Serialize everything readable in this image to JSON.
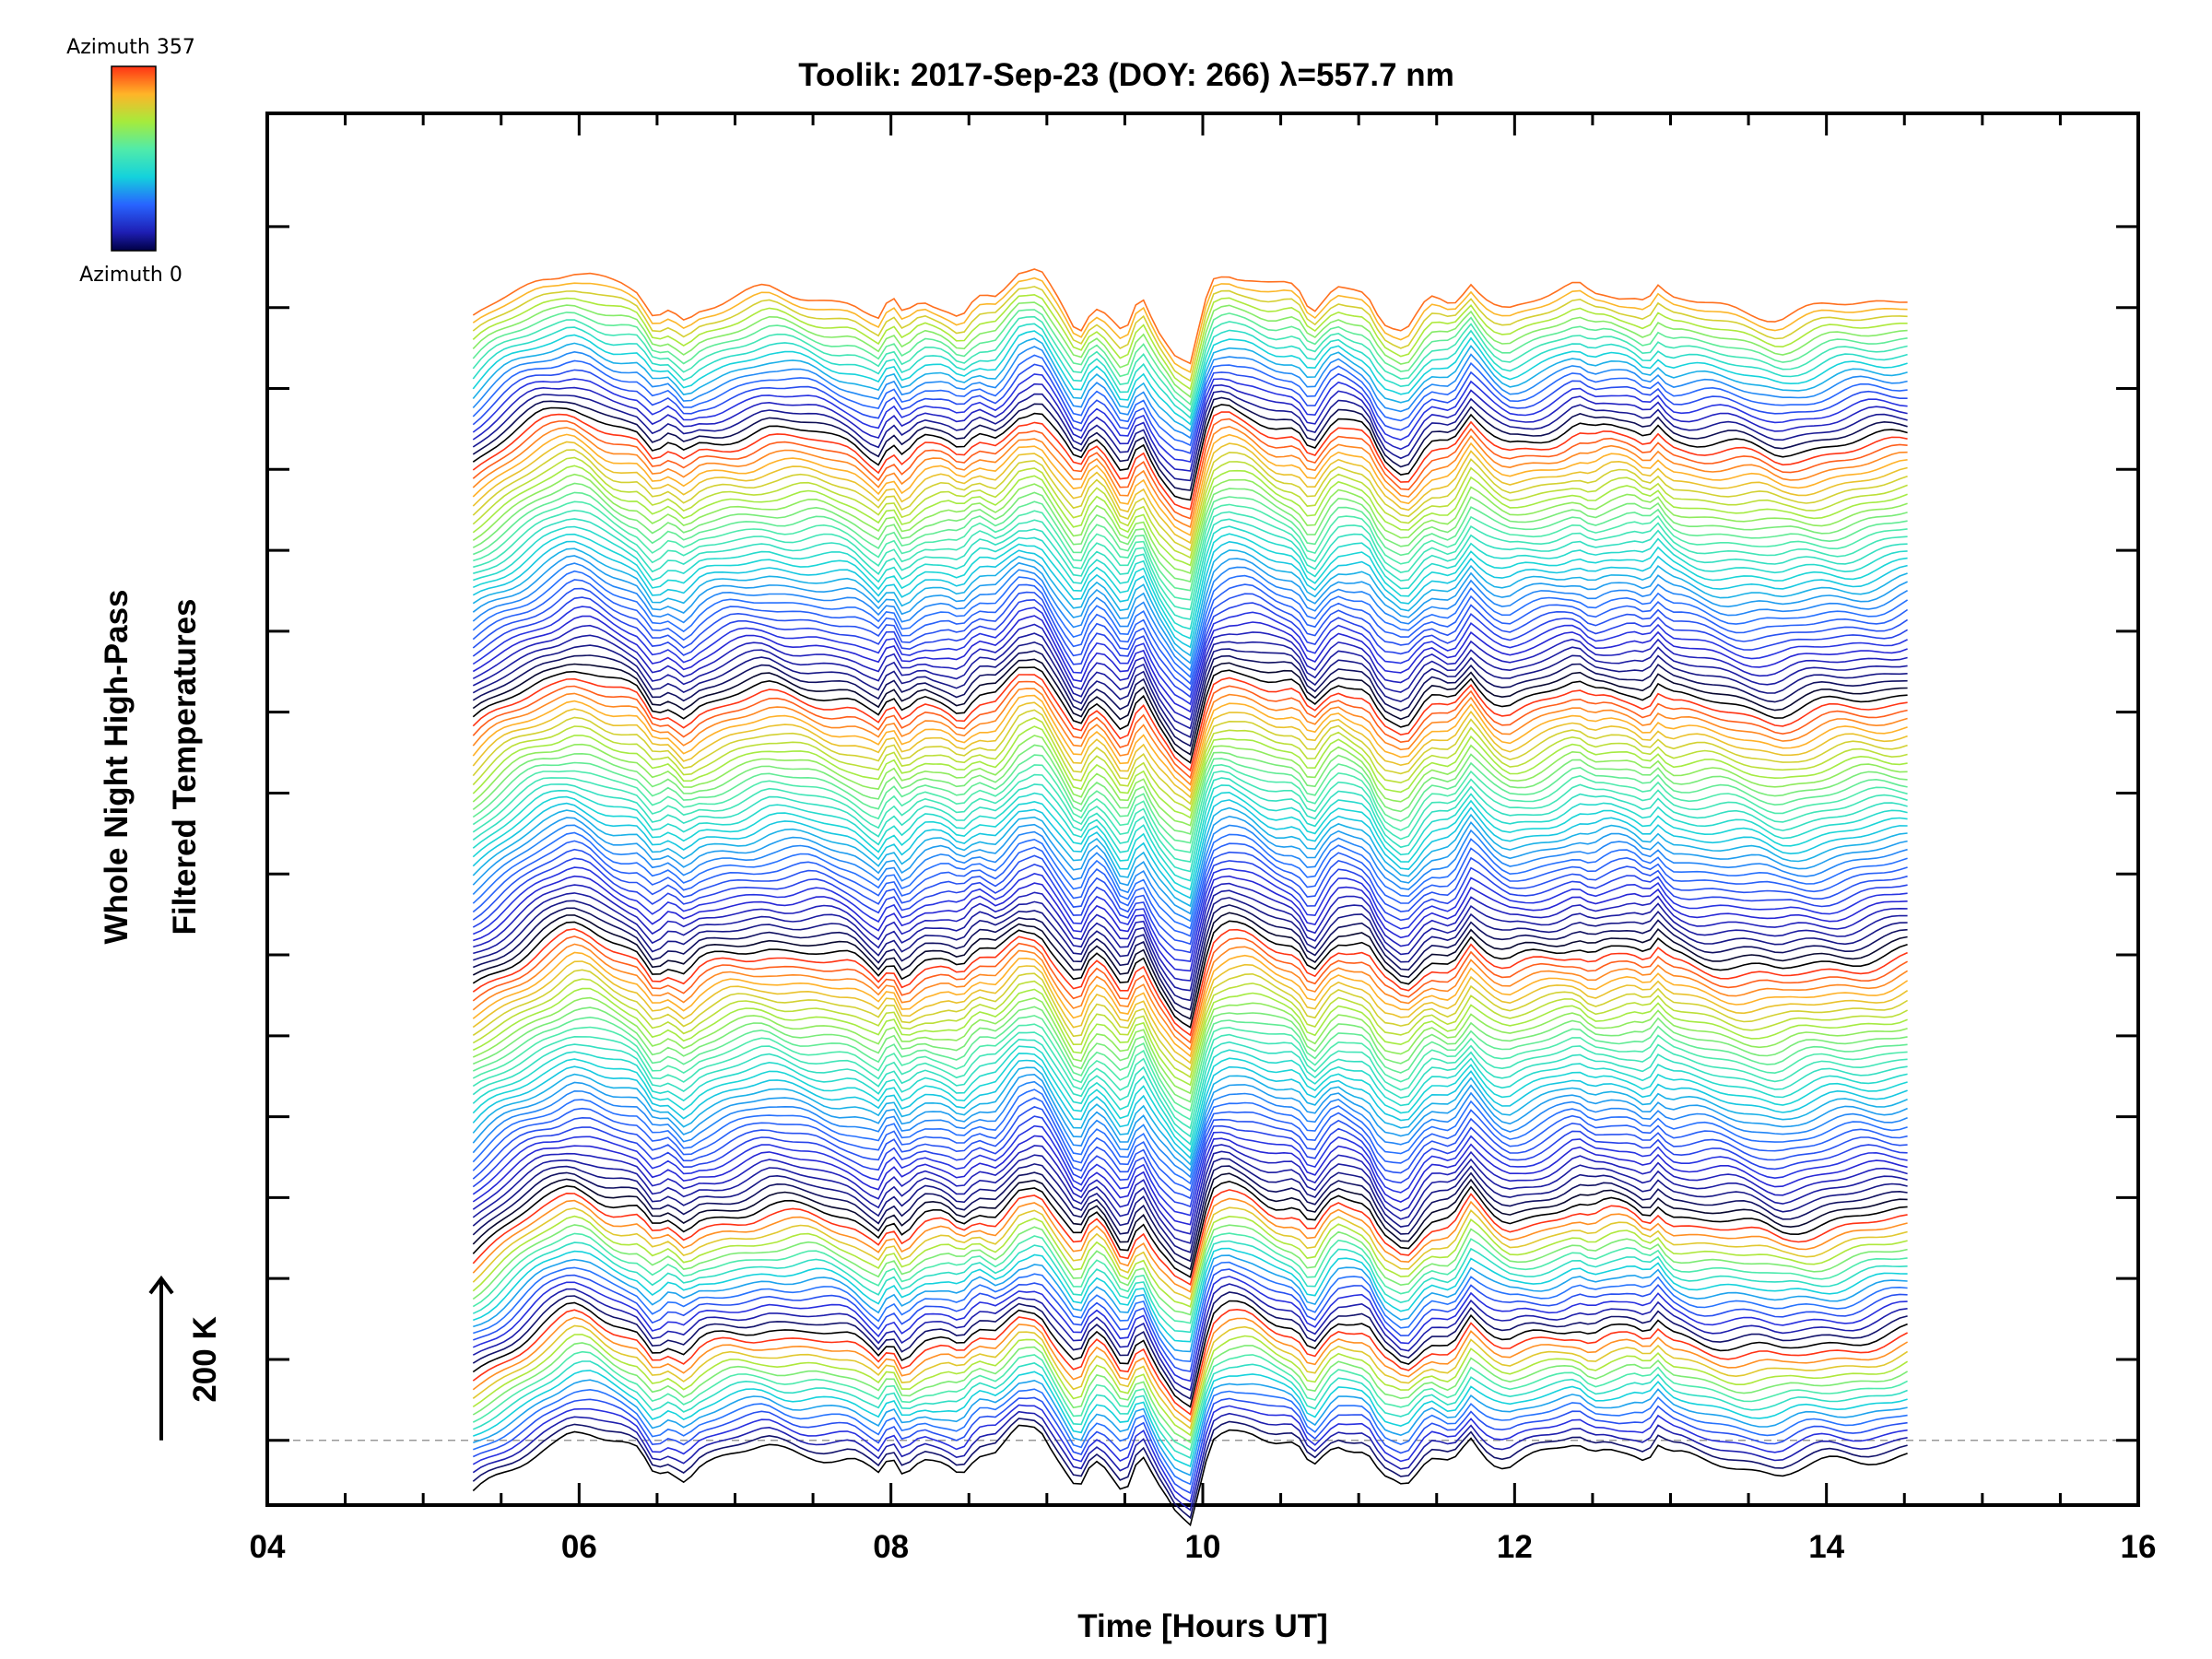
{
  "chart_data": {
    "type": "line",
    "title": "Toolik: 2017-Sep-23 (DOY: 266) λ=557.7 nm",
    "xlabel": "Time [Hours UT]",
    "ylabel_line1": "Whole Night High-Pass",
    "ylabel_line2": "Filtered Temperatures",
    "xlim": [
      4,
      16
    ],
    "x_ticks": [
      "04",
      "06",
      "08",
      "10",
      "12",
      "14",
      "16"
    ],
    "x_tick_values": [
      4,
      6,
      8,
      10,
      12,
      14,
      16
    ],
    "x_minor_step": 0.5,
    "data_time_range": [
      5.32,
      14.54
    ],
    "ylim_kelvin": [
      -80,
      1640
    ],
    "y_tick_step_kelvin": 100,
    "trace_offset_kelvin": 10,
    "n_traces": 144,
    "baseline_kelvin": 0,
    "scale_bar": {
      "label": "200 K",
      "kelvin": 200
    },
    "colorbar": {
      "top_label": "Azimuth 357",
      "bottom_label": "Azimuth 0",
      "min": 0,
      "max": 357
    },
    "azimuth_groups": [
      {
        "start_kelvin": 0,
        "azimuth_step_deg": 25.5,
        "n": 15
      },
      {
        "start_kelvin": 150,
        "azimuth_step_deg": 25.5,
        "n": 15
      },
      {
        "start_kelvin": 300,
        "azimuth_step_deg": 11.5,
        "n": 32
      },
      {
        "start_kelvin": 620,
        "azimuth_step_deg": 11.5,
        "n": 32
      },
      {
        "start_kelvin": 940,
        "azimuth_step_deg": 11.5,
        "n": 32
      },
      {
        "start_kelvin": 1260,
        "azimuth_step_deg": 20,
        "n": 18
      }
    ],
    "base_waveform": {
      "time": [
        5.32,
        5.5,
        5.75,
        5.95,
        6.05,
        6.2,
        6.38,
        6.48,
        6.58,
        6.68,
        6.78,
        6.95,
        7.2,
        7.5,
        7.75,
        7.92,
        8.0,
        8.08,
        8.2,
        8.35,
        8.45,
        8.55,
        8.68,
        8.82,
        8.95,
        9.05,
        9.15,
        9.2,
        9.3,
        9.38,
        9.5,
        9.6,
        9.7,
        9.82,
        9.92,
        10.05,
        10.15,
        10.3,
        10.45,
        10.6,
        10.7,
        10.75,
        10.85,
        10.95,
        11.05,
        11.15,
        11.3,
        11.45,
        11.6,
        11.72,
        11.85,
        11.95,
        12.05,
        12.25,
        12.4,
        12.5,
        12.6,
        12.75,
        12.85,
        12.92,
        13.0,
        13.15,
        13.35,
        13.55,
        13.7,
        13.85,
        14.0,
        14.2,
        14.4,
        14.54
      ],
      "kelvin": [
        -70,
        -45,
        -10,
        12,
        10,
        -5,
        -15,
        -40,
        -30,
        -45,
        -30,
        -20,
        -10,
        -15,
        -25,
        -45,
        -20,
        -45,
        -25,
        -25,
        -35,
        -15,
        -20,
        10,
        15,
        -15,
        -45,
        -60,
        -20,
        -30,
        -65,
        -20,
        -60,
        -90,
        -100,
        5,
        15,
        10,
        -5,
        -10,
        -40,
        -25,
        0,
        -5,
        -10,
        -45,
        -60,
        -25,
        -30,
        5,
        -20,
        -30,
        -25,
        -15,
        -5,
        -15,
        -10,
        -10,
        -20,
        -5,
        -20,
        -25,
        -30,
        -35,
        -40,
        -35,
        -30,
        -25,
        -20,
        -15
      ]
    }
  }
}
